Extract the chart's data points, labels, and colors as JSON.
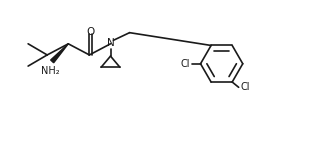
{
  "bg_color": "#ffffff",
  "line_color": "#1a1a1a",
  "line_width": 1.2,
  "font_size": 7.0,
  "fig_width": 3.26,
  "fig_height": 1.48,
  "dpi": 100,
  "xlim": [
    0,
    11
  ],
  "ylim": [
    0,
    5
  ]
}
